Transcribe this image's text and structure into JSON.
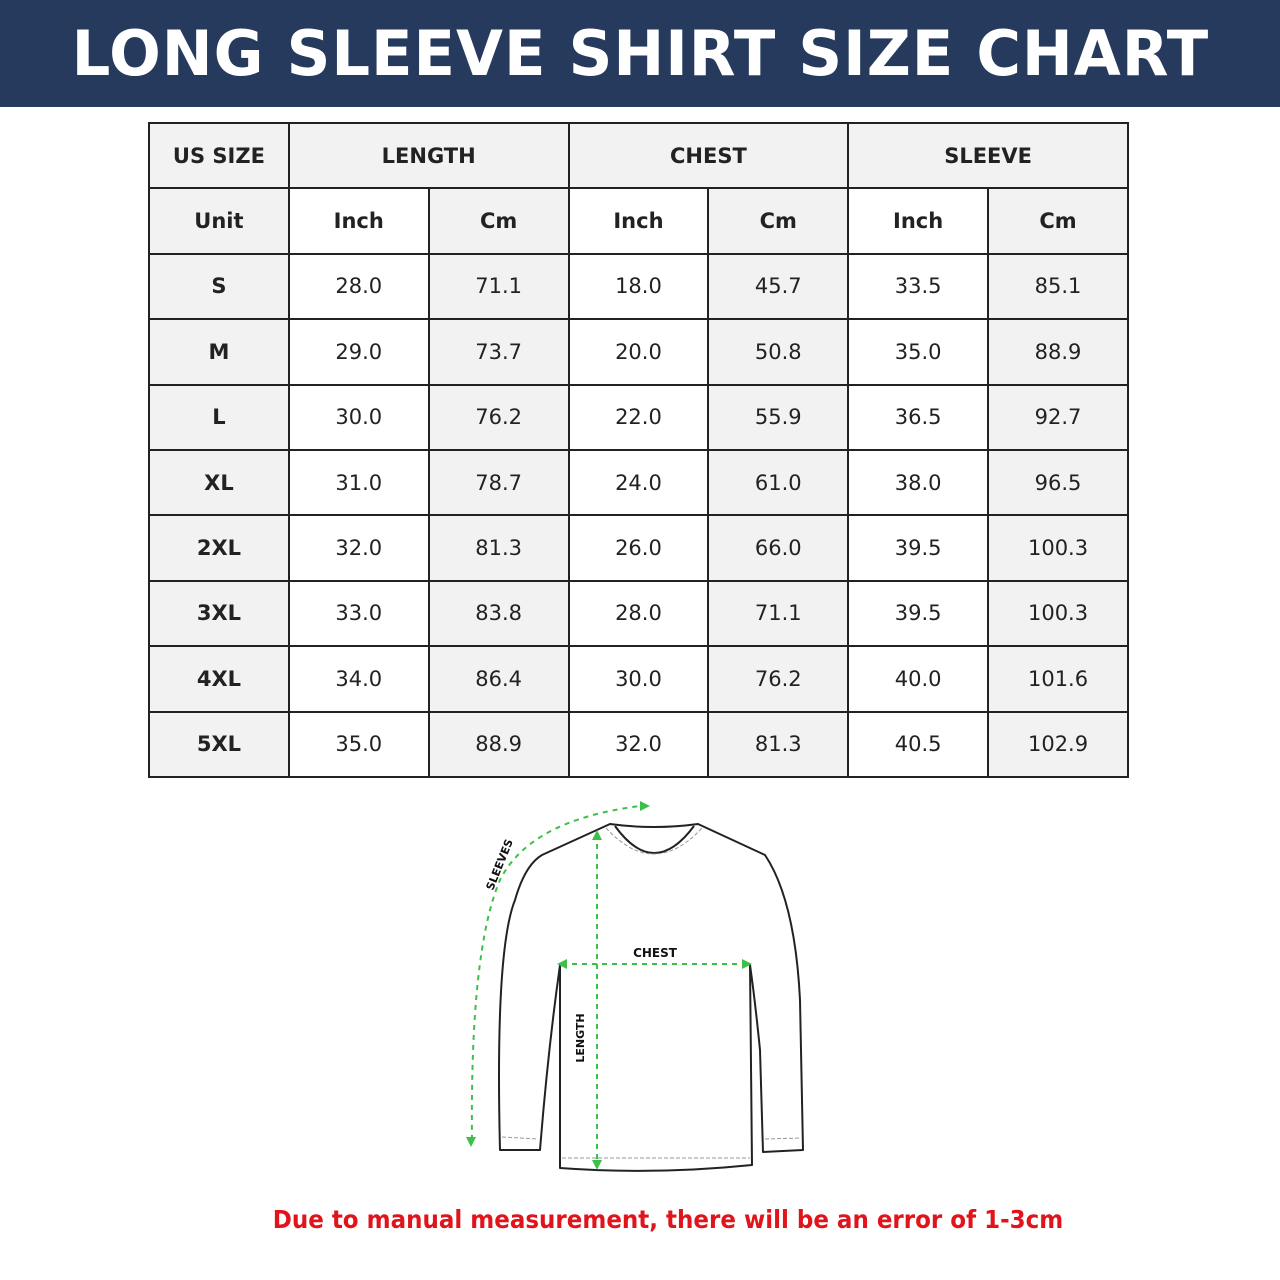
{
  "title": "LONG SLEEVE SHIRT SIZE CHART",
  "table": {
    "header_row": [
      "US SIZE",
      "LENGTH",
      "CHEST",
      "SLEEVE"
    ],
    "unit_row": [
      "Unit",
      "Inch",
      "Cm",
      "Inch",
      "Cm",
      "Inch",
      "Cm"
    ],
    "rows": [
      [
        "S",
        "28.0",
        "71.1",
        "18.0",
        "45.7",
        "33.5",
        "85.1"
      ],
      [
        "M",
        "29.0",
        "73.7",
        "20.0",
        "50.8",
        "35.0",
        "88.9"
      ],
      [
        "L",
        "30.0",
        "76.2",
        "22.0",
        "55.9",
        "36.5",
        "92.7"
      ],
      [
        "XL",
        "31.0",
        "78.7",
        "24.0",
        "61.0",
        "38.0",
        "96.5"
      ],
      [
        "2XL",
        "32.0",
        "81.3",
        "26.0",
        "66.0",
        "39.5",
        "100.3"
      ],
      [
        "3XL",
        "33.0",
        "83.8",
        "28.0",
        "71.1",
        "39.5",
        "100.3"
      ],
      [
        "4XL",
        "34.0",
        "86.4",
        "30.0",
        "76.2",
        "40.0",
        "101.6"
      ],
      [
        "5XL",
        "35.0",
        "88.9",
        "32.0",
        "81.3",
        "40.5",
        "102.9"
      ]
    ]
  },
  "diagram": {
    "labels": {
      "sleeves": "SLEEVES",
      "chest": "CHEST",
      "length": "LENGTH"
    },
    "measure_color": "#3cc04a"
  },
  "note": "Due to manual measurement, there will be an error of 1-3cm",
  "colors": {
    "banner": "#263a5e",
    "note": "#e0141a"
  }
}
